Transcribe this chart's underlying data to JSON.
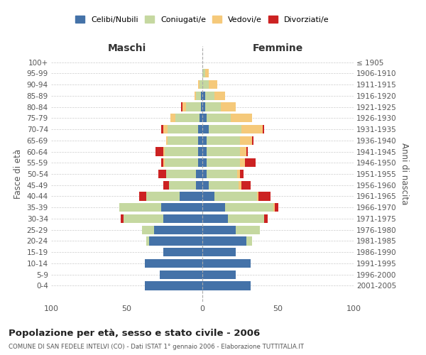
{
  "age_groups": [
    "0-4",
    "5-9",
    "10-14",
    "15-19",
    "20-24",
    "25-29",
    "30-34",
    "35-39",
    "40-44",
    "45-49",
    "50-54",
    "55-59",
    "60-64",
    "65-69",
    "70-74",
    "75-79",
    "80-84",
    "85-89",
    "90-94",
    "95-99",
    "100+"
  ],
  "birth_years": [
    "2001-2005",
    "1996-2000",
    "1991-1995",
    "1986-1990",
    "1981-1985",
    "1976-1980",
    "1971-1975",
    "1966-1970",
    "1961-1965",
    "1956-1960",
    "1951-1955",
    "1946-1950",
    "1941-1945",
    "1936-1940",
    "1931-1935",
    "1926-1930",
    "1921-1925",
    "1916-1920",
    "1911-1915",
    "1906-1910",
    "≤ 1905"
  ],
  "colors": {
    "celibi": "#4472a8",
    "coniugati": "#c5d8a0",
    "vedovi": "#f5c97a",
    "divorziati": "#cc2222"
  },
  "maschi": {
    "celibi": [
      38,
      28,
      38,
      26,
      35,
      32,
      26,
      27,
      15,
      4,
      4,
      3,
      3,
      3,
      3,
      2,
      1,
      1,
      0,
      0,
      0
    ],
    "coniugati": [
      0,
      0,
      0,
      0,
      2,
      8,
      26,
      28,
      22,
      18,
      20,
      22,
      22,
      20,
      20,
      16,
      10,
      3,
      2,
      0,
      0
    ],
    "vedovi": [
      0,
      0,
      0,
      0,
      0,
      0,
      0,
      0,
      0,
      0,
      0,
      1,
      1,
      1,
      3,
      3,
      2,
      1,
      1,
      0,
      0
    ],
    "divorziati": [
      0,
      0,
      0,
      0,
      0,
      0,
      2,
      0,
      5,
      4,
      5,
      1,
      5,
      0,
      1,
      0,
      1,
      0,
      0,
      0,
      0
    ]
  },
  "femmine": {
    "celibi": [
      32,
      22,
      32,
      22,
      29,
      22,
      17,
      15,
      8,
      4,
      3,
      3,
      3,
      3,
      4,
      3,
      2,
      2,
      0,
      0,
      0
    ],
    "coniugati": [
      0,
      0,
      0,
      0,
      4,
      16,
      24,
      32,
      28,
      20,
      20,
      22,
      22,
      22,
      22,
      16,
      10,
      6,
      4,
      2,
      0
    ],
    "vedovi": [
      0,
      0,
      0,
      0,
      0,
      0,
      0,
      1,
      1,
      2,
      2,
      3,
      4,
      8,
      14,
      14,
      10,
      7,
      6,
      2,
      0
    ],
    "divorziati": [
      0,
      0,
      0,
      0,
      0,
      0,
      2,
      2,
      8,
      6,
      2,
      7,
      1,
      1,
      1,
      0,
      0,
      0,
      0,
      0,
      0
    ]
  },
  "xlim": 100,
  "title": "Popolazione per età, sesso e stato civile - 2006",
  "subtitle": "COMUNE DI SAN FEDELE INTELVI (CO) - Dati ISTAT 1° gennaio 2006 - Elaborazione TUTTITALIA.IT",
  "ylabel_left": "Fasce di età",
  "ylabel_right": "Anni di nascita",
  "xlabel_left": "Maschi",
  "xlabel_right": "Femmine",
  "legend_labels": [
    "Celibi/Nubili",
    "Coniugati/e",
    "Vedovi/e",
    "Divorziati/e"
  ],
  "background_color": "#ffffff",
  "grid_color": "#cccccc"
}
